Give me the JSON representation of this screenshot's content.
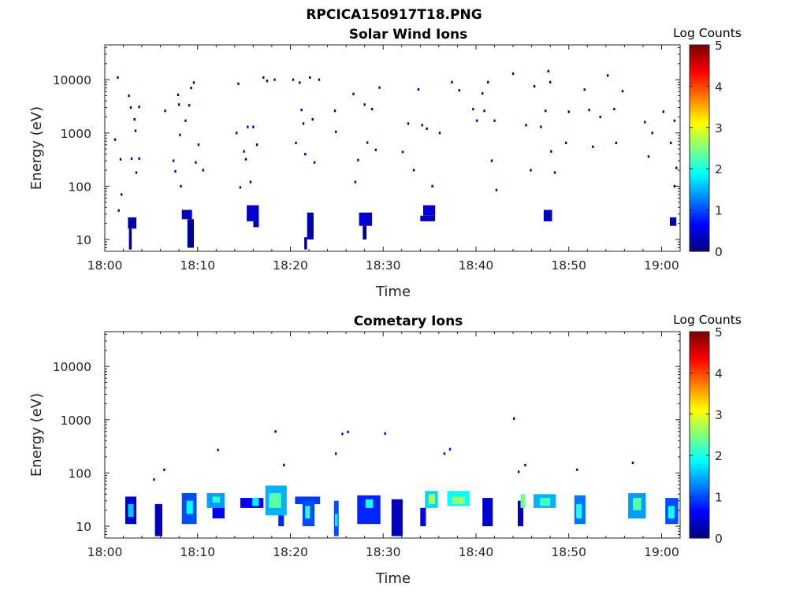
{
  "figure": {
    "title": "RPCICA150917T18.PNG"
  },
  "colorbar": {
    "label": "Log Counts",
    "ticks": [
      "0",
      "1",
      "2",
      "3",
      "4",
      "5"
    ],
    "range": [
      0,
      5
    ],
    "colormap": "jet"
  },
  "chart_data": [
    {
      "type": "heatmap",
      "title": "Solar Wind Ions",
      "xlabel": "Time",
      "ylabel": "Energy (eV)",
      "xlim": [
        "18:00",
        "19:02"
      ],
      "ylim": [
        6,
        45000
      ],
      "yscale": "log",
      "xticks": [
        "18:00",
        "18:10",
        "18:20",
        "18:30",
        "18:40",
        "18:50",
        "19:00"
      ],
      "yticks": [
        "10",
        "100",
        "1000",
        "10000"
      ],
      "colorbar_range": [
        0,
        5
      ],
      "patches": [
        {
          "t0": 2.5,
          "t1": 3.4,
          "e0": 16,
          "e1": 26,
          "v": 0.2
        },
        {
          "t0": 2.6,
          "t1": 2.9,
          "e0": 6.5,
          "e1": 16,
          "v": 0.1
        },
        {
          "t0": 8.3,
          "t1": 9.4,
          "e0": 24,
          "e1": 36,
          "v": 0.3
        },
        {
          "t0": 8.9,
          "t1": 9.6,
          "e0": 7,
          "e1": 24,
          "v": 0.1
        },
        {
          "t0": 15.3,
          "t1": 16.6,
          "e0": 22,
          "e1": 44,
          "v": 0.4
        },
        {
          "t0": 16.0,
          "t1": 16.6,
          "e0": 17,
          "e1": 22,
          "v": 0.2
        },
        {
          "t0": 21.8,
          "t1": 22.5,
          "e0": 10,
          "e1": 32,
          "v": 0.2
        },
        {
          "t0": 21.5,
          "t1": 21.8,
          "e0": 6.5,
          "e1": 11,
          "v": 0.1
        },
        {
          "t0": 27.4,
          "t1": 28.8,
          "e0": 18,
          "e1": 32,
          "v": 0.4
        },
        {
          "t0": 27.8,
          "t1": 28.2,
          "e0": 10,
          "e1": 18,
          "v": 0.1
        },
        {
          "t0": 34.3,
          "t1": 35.6,
          "e0": 28,
          "e1": 44,
          "v": 0.45
        },
        {
          "t0": 34.0,
          "t1": 35.6,
          "e0": 22,
          "e1": 28,
          "v": 0.3
        },
        {
          "t0": 47.3,
          "t1": 48.2,
          "e0": 22,
          "e1": 36,
          "v": 0.3
        },
        {
          "t0": 60.9,
          "t1": 61.6,
          "e0": 18,
          "e1": 26,
          "v": 0.2
        }
      ],
      "points": [
        {
          "t": 1.1,
          "e": 750,
          "v": 0.15
        },
        {
          "t": 1.4,
          "e": 11000,
          "v": 0.15
        },
        {
          "t": 1.7,
          "e": 320,
          "v": 0.15
        },
        {
          "t": 1.8,
          "e": 70,
          "v": 0.15
        },
        {
          "t": 1.5,
          "e": 35,
          "v": 0.15
        },
        {
          "t": 2.6,
          "e": 5000,
          "v": 0.15
        },
        {
          "t": 2.8,
          "e": 3000,
          "v": 0.15
        },
        {
          "t": 3.2,
          "e": 1800,
          "v": 0.15
        },
        {
          "t": 3.3,
          "e": 1100,
          "v": 0.15
        },
        {
          "t": 2.9,
          "e": 330,
          "v": 0.15
        },
        {
          "t": 3.4,
          "e": 180,
          "v": 0.15
        },
        {
          "t": 3.7,
          "e": 330,
          "v": 0.15
        },
        {
          "t": 3.7,
          "e": 3100,
          "v": 0.15
        },
        {
          "t": 6.5,
          "e": 2600,
          "v": 0.15
        },
        {
          "t": 7.4,
          "e": 300,
          "v": 0.15
        },
        {
          "t": 7.6,
          "e": 190,
          "v": 0.15
        },
        {
          "t": 7.9,
          "e": 5200,
          "v": 0.15
        },
        {
          "t": 8.0,
          "e": 3400,
          "v": 0.15
        },
        {
          "t": 8.1,
          "e": 920,
          "v": 0.15
        },
        {
          "t": 8.2,
          "e": 100,
          "v": 0.15
        },
        {
          "t": 8.7,
          "e": 1700,
          "v": 0.15
        },
        {
          "t": 9.1,
          "e": 3300,
          "v": 0.15
        },
        {
          "t": 9.3,
          "e": 7000,
          "v": 0.15
        },
        {
          "t": 9.6,
          "e": 8800,
          "v": 0.15
        },
        {
          "t": 9.8,
          "e": 280,
          "v": 0.15
        },
        {
          "t": 10.1,
          "e": 600,
          "v": 0.15
        },
        {
          "t": 10.6,
          "e": 200,
          "v": 0.15
        },
        {
          "t": 14.2,
          "e": 1000,
          "v": 0.15
        },
        {
          "t": 14.4,
          "e": 8400,
          "v": 0.15
        },
        {
          "t": 14.6,
          "e": 95,
          "v": 0.15
        },
        {
          "t": 15.0,
          "e": 450,
          "v": 0.15
        },
        {
          "t": 15.2,
          "e": 320,
          "v": 0.15
        },
        {
          "t": 15.4,
          "e": 1300,
          "v": 0.15
        },
        {
          "t": 15.7,
          "e": 120,
          "v": 0.15
        },
        {
          "t": 16.0,
          "e": 1300,
          "v": 0.15
        },
        {
          "t": 16.4,
          "e": 600,
          "v": 0.15
        },
        {
          "t": 17.1,
          "e": 11000,
          "v": 0.15
        },
        {
          "t": 17.5,
          "e": 9500,
          "v": 0.15
        },
        {
          "t": 18.3,
          "e": 10000,
          "v": 0.15
        },
        {
          "t": 20.3,
          "e": 10000,
          "v": 0.15
        },
        {
          "t": 20.6,
          "e": 650,
          "v": 0.15
        },
        {
          "t": 21.0,
          "e": 8800,
          "v": 0.15
        },
        {
          "t": 21.2,
          "e": 2700,
          "v": 0.15
        },
        {
          "t": 21.4,
          "e": 1500,
          "v": 0.15
        },
        {
          "t": 21.6,
          "e": 400,
          "v": 0.15
        },
        {
          "t": 22.1,
          "e": 11000,
          "v": 0.15
        },
        {
          "t": 22.4,
          "e": 1800,
          "v": 0.15
        },
        {
          "t": 22.6,
          "e": 280,
          "v": 0.15
        },
        {
          "t": 23.1,
          "e": 10000,
          "v": 0.15
        },
        {
          "t": 24.8,
          "e": 2600,
          "v": 0.15
        },
        {
          "t": 24.9,
          "e": 1050,
          "v": 0.15
        },
        {
          "t": 26.8,
          "e": 5400,
          "v": 0.15
        },
        {
          "t": 27.0,
          "e": 120,
          "v": 0.15
        },
        {
          "t": 27.3,
          "e": 310,
          "v": 0.15
        },
        {
          "t": 28.0,
          "e": 3400,
          "v": 0.15
        },
        {
          "t": 28.3,
          "e": 660,
          "v": 0.15
        },
        {
          "t": 28.8,
          "e": 2800,
          "v": 0.15
        },
        {
          "t": 29.2,
          "e": 480,
          "v": 0.15
        },
        {
          "t": 29.6,
          "e": 7100,
          "v": 0.15
        },
        {
          "t": 32.1,
          "e": 440,
          "v": 0.15
        },
        {
          "t": 32.7,
          "e": 1500,
          "v": 0.15
        },
        {
          "t": 33.3,
          "e": 200,
          "v": 0.15
        },
        {
          "t": 33.8,
          "e": 6600,
          "v": 0.15
        },
        {
          "t": 34.2,
          "e": 1400,
          "v": 0.15
        },
        {
          "t": 34.7,
          "e": 1200,
          "v": 0.15
        },
        {
          "t": 35.3,
          "e": 100,
          "v": 0.15
        },
        {
          "t": 36.1,
          "e": 1000,
          "v": 0.15
        },
        {
          "t": 37.4,
          "e": 9000,
          "v": 0.15
        },
        {
          "t": 38.2,
          "e": 6300,
          "v": 0.15
        },
        {
          "t": 39.7,
          "e": 2800,
          "v": 0.15
        },
        {
          "t": 40.1,
          "e": 1700,
          "v": 0.15
        },
        {
          "t": 40.7,
          "e": 5500,
          "v": 0.15
        },
        {
          "t": 40.9,
          "e": 2600,
          "v": 0.15
        },
        {
          "t": 41.3,
          "e": 9000,
          "v": 0.15
        },
        {
          "t": 41.7,
          "e": 300,
          "v": 0.15
        },
        {
          "t": 42.0,
          "e": 1700,
          "v": 0.15
        },
        {
          "t": 42.2,
          "e": 85,
          "v": 0.15
        },
        {
          "t": 44.0,
          "e": 13000,
          "v": 0.15
        },
        {
          "t": 45.4,
          "e": 1400,
          "v": 0.15
        },
        {
          "t": 45.9,
          "e": 200,
          "v": 0.15
        },
        {
          "t": 46.3,
          "e": 7500,
          "v": 0.15
        },
        {
          "t": 47.0,
          "e": 1300,
          "v": 0.15
        },
        {
          "t": 47.5,
          "e": 2600,
          "v": 0.15
        },
        {
          "t": 47.8,
          "e": 14500,
          "v": 0.15
        },
        {
          "t": 48.0,
          "e": 9000,
          "v": 0.15
        },
        {
          "t": 48.1,
          "e": 450,
          "v": 0.15
        },
        {
          "t": 48.5,
          "e": 180,
          "v": 0.15
        },
        {
          "t": 49.7,
          "e": 650,
          "v": 0.15
        },
        {
          "t": 50.0,
          "e": 2500,
          "v": 0.15
        },
        {
          "t": 51.7,
          "e": 6500,
          "v": 0.15
        },
        {
          "t": 52.2,
          "e": 2700,
          "v": 0.15
        },
        {
          "t": 52.6,
          "e": 550,
          "v": 0.15
        },
        {
          "t": 53.4,
          "e": 2000,
          "v": 0.15
        },
        {
          "t": 54.2,
          "e": 12000,
          "v": 0.15
        },
        {
          "t": 54.9,
          "e": 2800,
          "v": 0.15
        },
        {
          "t": 55.1,
          "e": 650,
          "v": 0.15
        },
        {
          "t": 55.8,
          "e": 6100,
          "v": 0.15
        },
        {
          "t": 58.2,
          "e": 1600,
          "v": 0.15
        },
        {
          "t": 58.6,
          "e": 360,
          "v": 0.15
        },
        {
          "t": 59.0,
          "e": 1000,
          "v": 0.15
        },
        {
          "t": 60.2,
          "e": 2500,
          "v": 0.15
        },
        {
          "t": 61.0,
          "e": 650,
          "v": 0.15
        },
        {
          "t": 61.4,
          "e": 1700,
          "v": 0.15
        },
        {
          "t": 61.6,
          "e": 220,
          "v": 0.15
        },
        {
          "t": 61.4,
          "e": 100,
          "v": 0.15
        }
      ]
    },
    {
      "type": "heatmap",
      "title": "Cometary Ions",
      "xlabel": "Time",
      "ylabel": "Energy (eV)",
      "xlim": [
        "18:00",
        "19:02"
      ],
      "ylim": [
        6,
        45000
      ],
      "yscale": "log",
      "xticks": [
        "18:00",
        "18:10",
        "18:20",
        "18:30",
        "18:40",
        "18:50",
        "19:00"
      ],
      "yticks": [
        "10",
        "100",
        "1000",
        "10000"
      ],
      "colorbar_range": [
        0,
        5
      ],
      "patches": [
        {
          "t0": 2.2,
          "t1": 3.4,
          "e0": 11,
          "e1": 36,
          "v": 0.4
        },
        {
          "t0": 2.5,
          "t1": 3.1,
          "e0": 15,
          "e1": 26,
          "v": 1.6
        },
        {
          "t0": 5.4,
          "t1": 6.2,
          "e0": 6.5,
          "e1": 26,
          "v": 0.3
        },
        {
          "t0": 8.3,
          "t1": 9.9,
          "e0": 11,
          "e1": 42,
          "v": 1.0
        },
        {
          "t0": 8.8,
          "t1": 9.5,
          "e0": 17,
          "e1": 30,
          "v": 1.9
        },
        {
          "t0": 11.0,
          "t1": 12.9,
          "e0": 22,
          "e1": 42,
          "v": 1.4
        },
        {
          "t0": 11.6,
          "t1": 12.4,
          "e0": 28,
          "e1": 36,
          "v": 2.1
        },
        {
          "t0": 11.6,
          "t1": 12.9,
          "e0": 14,
          "e1": 22,
          "v": 0.6
        },
        {
          "t0": 14.6,
          "t1": 17.1,
          "e0": 22,
          "e1": 34,
          "v": 0.6
        },
        {
          "t0": 15.9,
          "t1": 16.6,
          "e0": 24,
          "e1": 34,
          "v": 1.8
        },
        {
          "t0": 17.3,
          "t1": 19.6,
          "e0": 16,
          "e1": 58,
          "v": 1.5
        },
        {
          "t0": 17.7,
          "t1": 19.0,
          "e0": 22,
          "e1": 42,
          "v": 2.3
        },
        {
          "t0": 18.7,
          "t1": 19.3,
          "e0": 10,
          "e1": 16,
          "v": 0.8
        },
        {
          "t0": 20.5,
          "t1": 23.2,
          "e0": 26,
          "e1": 36,
          "v": 0.9
        },
        {
          "t0": 21.3,
          "t1": 22.6,
          "e0": 10,
          "e1": 30,
          "v": 1.0
        },
        {
          "t0": 21.6,
          "t1": 22.1,
          "e0": 14,
          "e1": 24,
          "v": 2.1
        },
        {
          "t0": 24.7,
          "t1": 25.2,
          "e0": 6.5,
          "e1": 30,
          "v": 1.0
        },
        {
          "t0": 24.8,
          "t1": 25.1,
          "e0": 10,
          "e1": 17,
          "v": 1.8
        },
        {
          "t0": 27.2,
          "t1": 29.7,
          "e0": 11,
          "e1": 38,
          "v": 0.8
        },
        {
          "t0": 28.1,
          "t1": 28.9,
          "e0": 22,
          "e1": 32,
          "v": 2.0
        },
        {
          "t0": 30.9,
          "t1": 32.1,
          "e0": 6.5,
          "e1": 32,
          "v": 0.3
        },
        {
          "t0": 34.5,
          "t1": 35.9,
          "e0": 22,
          "e1": 46,
          "v": 1.7
        },
        {
          "t0": 34.9,
          "t1": 35.6,
          "e0": 26,
          "e1": 40,
          "v": 2.7
        },
        {
          "t0": 34.0,
          "t1": 34.6,
          "e0": 10,
          "e1": 22,
          "v": 0.6
        },
        {
          "t0": 36.9,
          "t1": 39.3,
          "e0": 24,
          "e1": 46,
          "v": 1.9
        },
        {
          "t0": 37.4,
          "t1": 38.8,
          "e0": 26,
          "e1": 36,
          "v": 2.6
        },
        {
          "t0": 40.7,
          "t1": 41.8,
          "e0": 10,
          "e1": 34,
          "v": 0.4
        },
        {
          "t0": 44.5,
          "t1": 45.1,
          "e0": 10,
          "e1": 30,
          "v": 0.3
        },
        {
          "t0": 44.8,
          "t1": 45.3,
          "e0": 22,
          "e1": 40,
          "v": 2.4
        },
        {
          "t0": 46.2,
          "t1": 48.6,
          "e0": 22,
          "e1": 40,
          "v": 1.5
        },
        {
          "t0": 46.9,
          "t1": 48.0,
          "e0": 24,
          "e1": 34,
          "v": 2.2
        },
        {
          "t0": 50.6,
          "t1": 51.8,
          "e0": 11,
          "e1": 38,
          "v": 1.2
        },
        {
          "t0": 50.8,
          "t1": 51.4,
          "e0": 14,
          "e1": 26,
          "v": 2.0
        },
        {
          "t0": 56.4,
          "t1": 58.3,
          "e0": 14,
          "e1": 42,
          "v": 1.4
        },
        {
          "t0": 56.9,
          "t1": 57.8,
          "e0": 20,
          "e1": 34,
          "v": 2.3
        },
        {
          "t0": 60.4,
          "t1": 61.8,
          "e0": 11,
          "e1": 34,
          "v": 1.0
        },
        {
          "t0": 60.7,
          "t1": 61.4,
          "e0": 14,
          "e1": 24,
          "v": 1.9
        }
      ],
      "points": [
        {
          "t": 5.3,
          "e": 75,
          "v": 0.4
        },
        {
          "t": 6.4,
          "e": 115,
          "v": 0.4
        },
        {
          "t": 12.2,
          "e": 270,
          "v": 0.4
        },
        {
          "t": 18.4,
          "e": 600,
          "v": 0.4
        },
        {
          "t": 19.3,
          "e": 140,
          "v": 0.4
        },
        {
          "t": 24.9,
          "e": 230,
          "v": 0.4
        },
        {
          "t": 25.6,
          "e": 540,
          "v": 0.4
        },
        {
          "t": 26.2,
          "e": 590,
          "v": 0.4
        },
        {
          "t": 30.2,
          "e": 550,
          "v": 0.4
        },
        {
          "t": 36.6,
          "e": 230,
          "v": 0.4
        },
        {
          "t": 37.2,
          "e": 280,
          "v": 0.4
        },
        {
          "t": 44.1,
          "e": 1050,
          "v": 0.4
        },
        {
          "t": 44.6,
          "e": 105,
          "v": 0.4
        },
        {
          "t": 45.3,
          "e": 140,
          "v": 0.4
        },
        {
          "t": 50.9,
          "e": 115,
          "v": 0.4
        },
        {
          "t": 56.9,
          "e": 155,
          "v": 0.4
        }
      ]
    }
  ]
}
